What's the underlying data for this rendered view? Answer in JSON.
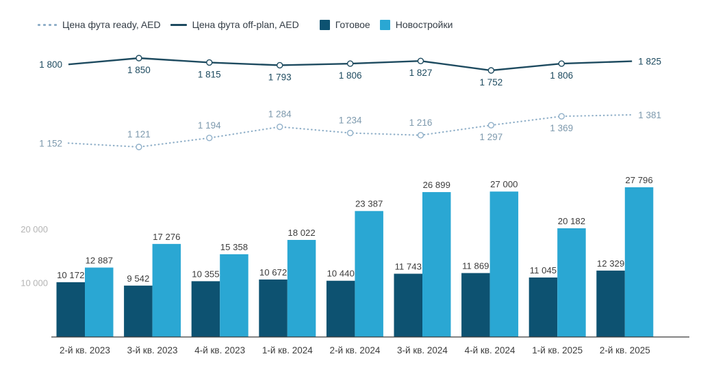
{
  "legend": {
    "items": [
      {
        "id": "ready-price-line",
        "label": "Цена фута ready, AED",
        "sample": "dotted-line",
        "color": "#8fafc8"
      },
      {
        "id": "offplan-price-line",
        "label": "Цена фута off-plan, AED",
        "sample": "solid-line",
        "color": "#1d4a5f"
      },
      {
        "id": "ready-stock-bars",
        "label": "Готовое",
        "sample": "square",
        "color": "#0d5271"
      },
      {
        "id": "new-builds-bars",
        "label": "Новостройки",
        "sample": "square",
        "color": "#2aa7d3"
      }
    ]
  },
  "chart_data": {
    "type": "combo-bar-line",
    "categories": [
      "2-й кв. 2023",
      "3-й кв. 2023",
      "4-й кв. 2023",
      "1-й кв. 2024",
      "2-й кв. 2024",
      "3-й кв. 2024",
      "4-й кв. 2024",
      "1-й кв. 2025",
      "2-й кв. 2025"
    ],
    "bar_series": [
      {
        "name": "Готовое",
        "color": "#0d5271",
        "values": [
          10172,
          9542,
          10355,
          10672,
          10440,
          11743,
          11869,
          11045,
          12329
        ]
      },
      {
        "name": "Новостройки",
        "color": "#2aa7d3",
        "values": [
          12887,
          17276,
          15358,
          18022,
          23387,
          26899,
          27000,
          20182,
          27796
        ]
      }
    ],
    "line_series": [
      {
        "name": "Цена фута off-plan, AED",
        "style": "solid",
        "color": "#1d4a5f",
        "label_color": "#1d4a5f",
        "values": [
          1800,
          1850,
          1815,
          1793,
          1806,
          1827,
          1752,
          1806,
          1825
        ],
        "label_positions": [
          "left",
          "below",
          "below",
          "below",
          "below",
          "below",
          "below",
          "below",
          "right"
        ]
      },
      {
        "name": "Цена фута ready, AED",
        "style": "dotted",
        "color": "#8fafc8",
        "label_color": "#7d99ad",
        "values": [
          1152,
          1121,
          1194,
          1284,
          1234,
          1216,
          1297,
          1369,
          1381
        ],
        "label_positions": [
          "left",
          "above",
          "above",
          "above",
          "above",
          "above",
          "below",
          "below",
          "right"
        ]
      }
    ],
    "y_axis": {
      "ticks": [
        10000,
        20000
      ],
      "tick_labels": [
        "10 000",
        "20 000"
      ],
      "tick_color": "#b4b4b4"
    },
    "x_axis": {
      "label_color": "#3c3c3c",
      "line_color": "#3a3a3a"
    },
    "bar_label_color": "#3c3c3c",
    "grid": false,
    "legend_position": "top-left",
    "bar_value_range": [
      0,
      30000
    ],
    "line_value_range": [
      1100,
      1900
    ]
  }
}
